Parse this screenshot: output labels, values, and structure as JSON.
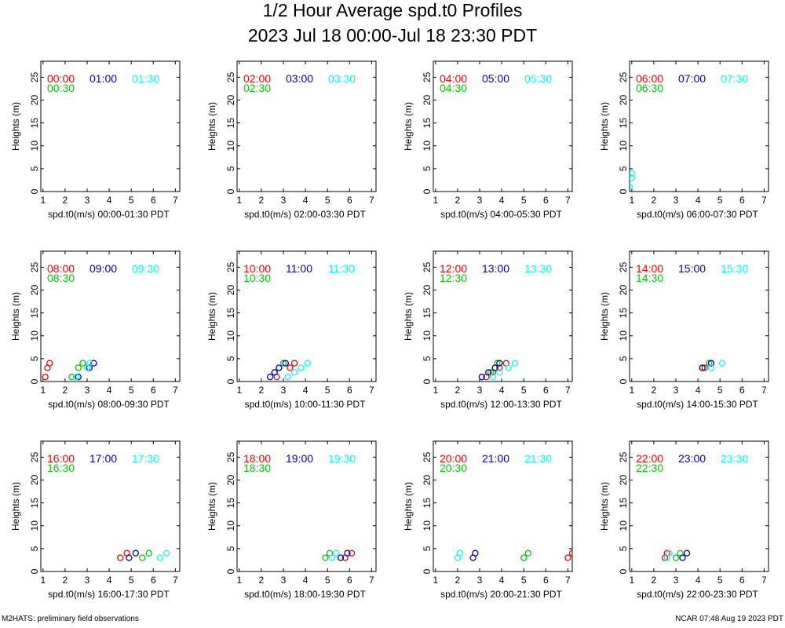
{
  "title": "1/2 Hour Average spd.t0 Profiles",
  "subtitle": "2023 Jul 18 00:00-Jul 18 23:30 PDT",
  "footer_left": "M2HATS: preliminary field observations",
  "footer_right": "NCAR 07:48 Aug 19 2023 PDT",
  "colors": {
    "hh00_a": "#ff0000",
    "hh30": "#00cc00",
    "hh00_b": "#0000cc",
    "hh30_b": "#00ffff"
  },
  "chart_data": [
    {
      "type": "scatter",
      "xlabel": "spd.t0(m/s) 00:00-01:30 PDT",
      "ylabel": "Heights (m)",
      "xlim": [
        0.9,
        7.2
      ],
      "ylim": [
        0,
        28.5
      ],
      "xticks": [
        1,
        2,
        3,
        4,
        5,
        6,
        7
      ],
      "yticks": [
        0,
        5,
        10,
        15,
        20,
        25
      ],
      "series": [
        {
          "name": "00:00",
          "color": "#ff0000",
          "points": []
        },
        {
          "name": "00:30",
          "color": "#00cc00",
          "points": []
        },
        {
          "name": "01:00",
          "color": "#0000cc",
          "points": []
        },
        {
          "name": "01:30",
          "color": "#00ffff",
          "points": []
        }
      ]
    },
    {
      "type": "scatter",
      "xlabel": "spd.t0(m/s) 02:00-03:30 PDT",
      "ylabel": "Heights (m)",
      "xlim": [
        0.9,
        7.2
      ],
      "ylim": [
        0,
        28.5
      ],
      "xticks": [
        1,
        2,
        3,
        4,
        5,
        6,
        7
      ],
      "yticks": [
        0,
        5,
        10,
        15,
        20,
        25
      ],
      "series": [
        {
          "name": "02:00",
          "color": "#ff0000",
          "points": []
        },
        {
          "name": "02:30",
          "color": "#00cc00",
          "points": []
        },
        {
          "name": "03:00",
          "color": "#0000cc",
          "points": []
        },
        {
          "name": "03:30",
          "color": "#00ffff",
          "points": []
        }
      ]
    },
    {
      "type": "scatter",
      "xlabel": "spd.t0(m/s) 04:00-05:30 PDT",
      "ylabel": "Heights (m)",
      "xlim": [
        0.9,
        7.2
      ],
      "ylim": [
        0,
        28.5
      ],
      "xticks": [
        1,
        2,
        3,
        4,
        5,
        6,
        7
      ],
      "yticks": [
        0,
        5,
        10,
        15,
        20,
        25
      ],
      "series": [
        {
          "name": "04:00",
          "color": "#ff0000",
          "points": []
        },
        {
          "name": "04:30",
          "color": "#00cc00",
          "points": []
        },
        {
          "name": "05:00",
          "color": "#0000cc",
          "points": []
        },
        {
          "name": "05:30",
          "color": "#00ffff",
          "points": []
        }
      ]
    },
    {
      "type": "scatter",
      "xlabel": "spd.t0(m/s) 06:00-07:30 PDT",
      "ylabel": "Heights (m)",
      "xlim": [
        0.9,
        7.2
      ],
      "ylim": [
        0,
        28.5
      ],
      "xticks": [
        1,
        2,
        3,
        4,
        5,
        6,
        7
      ],
      "yticks": [
        0,
        5,
        10,
        15,
        20,
        25
      ],
      "series": [
        {
          "name": "06:00",
          "color": "#ff0000",
          "points": []
        },
        {
          "name": "06:30",
          "color": "#00cc00",
          "points": []
        },
        {
          "name": "07:00",
          "color": "#0000cc",
          "points": []
        },
        {
          "name": "07:30",
          "color": "#00ffff",
          "points": [
            [
              0.9,
              1
            ],
            [
              1.0,
              3
            ],
            [
              1.0,
              4
            ]
          ]
        }
      ]
    },
    {
      "type": "scatter",
      "xlabel": "spd.t0(m/s) 08:00-09:30 PDT",
      "ylabel": "Heights (m)",
      "xlim": [
        0.9,
        7.2
      ],
      "ylim": [
        0,
        28.5
      ],
      "xticks": [
        1,
        2,
        3,
        4,
        5,
        6,
        7
      ],
      "yticks": [
        0,
        5,
        10,
        15,
        20,
        25
      ],
      "series": [
        {
          "name": "08:00",
          "color": "#ff0000",
          "points": [
            [
              1.1,
              1
            ],
            [
              1.2,
              3
            ],
            [
              1.3,
              4
            ]
          ]
        },
        {
          "name": "08:30",
          "color": "#00cc00",
          "points": [
            [
              2.3,
              1
            ],
            [
              2.6,
              3
            ],
            [
              2.8,
              4
            ]
          ]
        },
        {
          "name": "09:00",
          "color": "#0000cc",
          "points": [
            [
              2.6,
              1
            ],
            [
              3.1,
              3
            ],
            [
              3.3,
              4
            ]
          ]
        },
        {
          "name": "09:30",
          "color": "#00ffff",
          "points": [
            [
              2.5,
              1
            ],
            [
              3.0,
              3
            ],
            [
              3.1,
              4
            ]
          ]
        }
      ]
    },
    {
      "type": "scatter",
      "xlabel": "spd.t0(m/s) 10:00-11:30 PDT",
      "ylabel": "Heights (m)",
      "xlim": [
        0.9,
        7.2
      ],
      "ylim": [
        0,
        28.5
      ],
      "xticks": [
        1,
        2,
        3,
        4,
        5,
        6,
        7
      ],
      "yticks": [
        0,
        5,
        10,
        15,
        20,
        25
      ],
      "series": [
        {
          "name": "10:00",
          "color": "#ff0000",
          "points": [
            [
              2.7,
              1
            ],
            [
              3.3,
              3
            ],
            [
              3.5,
              4
            ]
          ]
        },
        {
          "name": "10:30",
          "color": "#00cc00",
          "points": [
            [
              2.6,
              2
            ],
            [
              2.8,
              3
            ],
            [
              3.0,
              4
            ]
          ]
        },
        {
          "name": "11:00",
          "color": "#0000cc",
          "points": [
            [
              2.4,
              1
            ],
            [
              2.6,
              2
            ],
            [
              2.8,
              3
            ],
            [
              3.1,
              4
            ]
          ]
        },
        {
          "name": "11:30",
          "color": "#00ffff",
          "points": [
            [
              3.2,
              1
            ],
            [
              3.5,
              2
            ],
            [
              3.8,
              3
            ],
            [
              4.1,
              4
            ]
          ]
        }
      ]
    },
    {
      "type": "scatter",
      "xlabel": "spd.t0(m/s) 12:00-13:30 PDT",
      "ylabel": "Heights (m)",
      "xlim": [
        0.9,
        7.2
      ],
      "ylim": [
        0,
        28.5
      ],
      "xticks": [
        1,
        2,
        3,
        4,
        5,
        6,
        7
      ],
      "yticks": [
        0,
        5,
        10,
        15,
        20,
        25
      ],
      "series": [
        {
          "name": "12:00",
          "color": "#ff0000",
          "points": [
            [
              3.3,
              1
            ],
            [
              3.6,
              2
            ],
            [
              3.9,
              3
            ],
            [
              4.2,
              4
            ]
          ]
        },
        {
          "name": "12:30",
          "color": "#00cc00",
          "points": [
            [
              3.5,
              2
            ],
            [
              3.7,
              3
            ],
            [
              3.8,
              4
            ]
          ]
        },
        {
          "name": "13:00",
          "color": "#0000cc",
          "points": [
            [
              3.1,
              1
            ],
            [
              3.4,
              2
            ],
            [
              3.7,
              3
            ],
            [
              3.9,
              4
            ]
          ]
        },
        {
          "name": "13:30",
          "color": "#00ffff",
          "points": [
            [
              3.6,
              1
            ],
            [
              3.9,
              2
            ],
            [
              4.3,
              3
            ],
            [
              4.6,
              4
            ]
          ]
        }
      ]
    },
    {
      "type": "scatter",
      "xlabel": "spd.t0(m/s) 14:00-15:30 PDT",
      "ylabel": "Heights (m)",
      "xlim": [
        0.9,
        7.2
      ],
      "ylim": [
        0,
        28.5
      ],
      "xticks": [
        1,
        2,
        3,
        4,
        5,
        6,
        7
      ],
      "yticks": [
        0,
        5,
        10,
        15,
        20,
        25
      ],
      "series": [
        {
          "name": "14:00",
          "color": "#ff0000",
          "points": [
            [
              4.3,
              3
            ],
            [
              4.6,
              4
            ]
          ]
        },
        {
          "name": "14:30",
          "color": "#00cc00",
          "points": [
            [
              4.2,
              3
            ],
            [
              4.5,
              4
            ]
          ]
        },
        {
          "name": "15:00",
          "color": "#0000cc",
          "points": [
            [
              4.2,
              3
            ],
            [
              4.6,
              4
            ]
          ]
        },
        {
          "name": "15:30",
          "color": "#00ffff",
          "points": [
            [
              4.6,
              3
            ],
            [
              5.1,
              4
            ]
          ]
        }
      ]
    },
    {
      "type": "scatter",
      "xlabel": "spd.t0(m/s) 16:00-17:30 PDT",
      "ylabel": "Heights (m)",
      "xlim": [
        0.9,
        7.2
      ],
      "ylim": [
        0,
        28.5
      ],
      "xticks": [
        1,
        2,
        3,
        4,
        5,
        6,
        7
      ],
      "yticks": [
        0,
        5,
        10,
        15,
        20,
        25
      ],
      "series": [
        {
          "name": "16:00",
          "color": "#ff0000",
          "points": [
            [
              4.5,
              3
            ],
            [
              4.8,
              4
            ]
          ]
        },
        {
          "name": "16:30",
          "color": "#00cc00",
          "points": [
            [
              5.5,
              3
            ],
            [
              5.8,
              4
            ]
          ]
        },
        {
          "name": "17:00",
          "color": "#0000cc",
          "points": [
            [
              4.9,
              3
            ],
            [
              5.2,
              4
            ]
          ]
        },
        {
          "name": "17:30",
          "color": "#00ffff",
          "points": [
            [
              6.3,
              3
            ],
            [
              6.6,
              4
            ]
          ]
        }
      ]
    },
    {
      "type": "scatter",
      "xlabel": "spd.t0(m/s) 18:00-19:30 PDT",
      "ylabel": "Heights (m)",
      "xlim": [
        0.9,
        7.2
      ],
      "ylim": [
        0,
        28.5
      ],
      "xticks": [
        1,
        2,
        3,
        4,
        5,
        6,
        7
      ],
      "yticks": [
        0,
        5,
        10,
        15,
        20,
        25
      ],
      "series": [
        {
          "name": "18:00",
          "color": "#ff0000",
          "points": [
            [
              5.8,
              3
            ],
            [
              6.1,
              4
            ]
          ]
        },
        {
          "name": "18:30",
          "color": "#00cc00",
          "points": [
            [
              4.9,
              3
            ],
            [
              5.1,
              4
            ]
          ]
        },
        {
          "name": "19:00",
          "color": "#0000cc",
          "points": [
            [
              5.6,
              3
            ],
            [
              5.9,
              4
            ]
          ]
        },
        {
          "name": "19:30",
          "color": "#00ffff",
          "points": [
            [
              5.2,
              3
            ],
            [
              5.4,
              4
            ]
          ]
        }
      ]
    },
    {
      "type": "scatter",
      "xlabel": "spd.t0(m/s) 20:00-21:30 PDT",
      "ylabel": "Heights (m)",
      "xlim": [
        0.9,
        7.2
      ],
      "ylim": [
        0,
        28.5
      ],
      "xticks": [
        1,
        2,
        3,
        4,
        5,
        6,
        7
      ],
      "yticks": [
        0,
        5,
        10,
        15,
        20,
        25
      ],
      "series": [
        {
          "name": "20:00",
          "color": "#ff0000",
          "points": [
            [
              7.0,
              3
            ],
            [
              7.2,
              4
            ]
          ]
        },
        {
          "name": "20:30",
          "color": "#00cc00",
          "points": [
            [
              5.0,
              3
            ],
            [
              5.2,
              4
            ]
          ]
        },
        {
          "name": "21:00",
          "color": "#0000cc",
          "points": [
            [
              2.7,
              3
            ],
            [
              2.8,
              4
            ]
          ]
        },
        {
          "name": "21:30",
          "color": "#00ffff",
          "points": [
            [
              2.0,
              3
            ],
            [
              2.1,
              4
            ]
          ]
        }
      ]
    },
    {
      "type": "scatter",
      "xlabel": "spd.t0(m/s) 22:00-23:30 PDT",
      "ylabel": "Heights (m)",
      "xlim": [
        0.9,
        7.2
      ],
      "ylim": [
        0,
        28.5
      ],
      "xticks": [
        1,
        2,
        3,
        4,
        5,
        6,
        7
      ],
      "yticks": [
        0,
        5,
        10,
        15,
        20,
        25
      ],
      "series": [
        {
          "name": "22:00",
          "color": "#ff0000",
          "points": [
            [
              2.5,
              3
            ],
            [
              2.6,
              4
            ]
          ]
        },
        {
          "name": "22:30",
          "color": "#00cc00",
          "points": [
            [
              3.0,
              3
            ],
            [
              3.2,
              4
            ]
          ]
        },
        {
          "name": "23:00",
          "color": "#0000cc",
          "points": [
            [
              3.3,
              3
            ],
            [
              3.5,
              4
            ]
          ]
        },
        {
          "name": "23:30",
          "color": "#00ffff",
          "points": [
            [
              2.6,
              3
            ],
            [
              2.7,
              4
            ]
          ]
        }
      ]
    }
  ]
}
